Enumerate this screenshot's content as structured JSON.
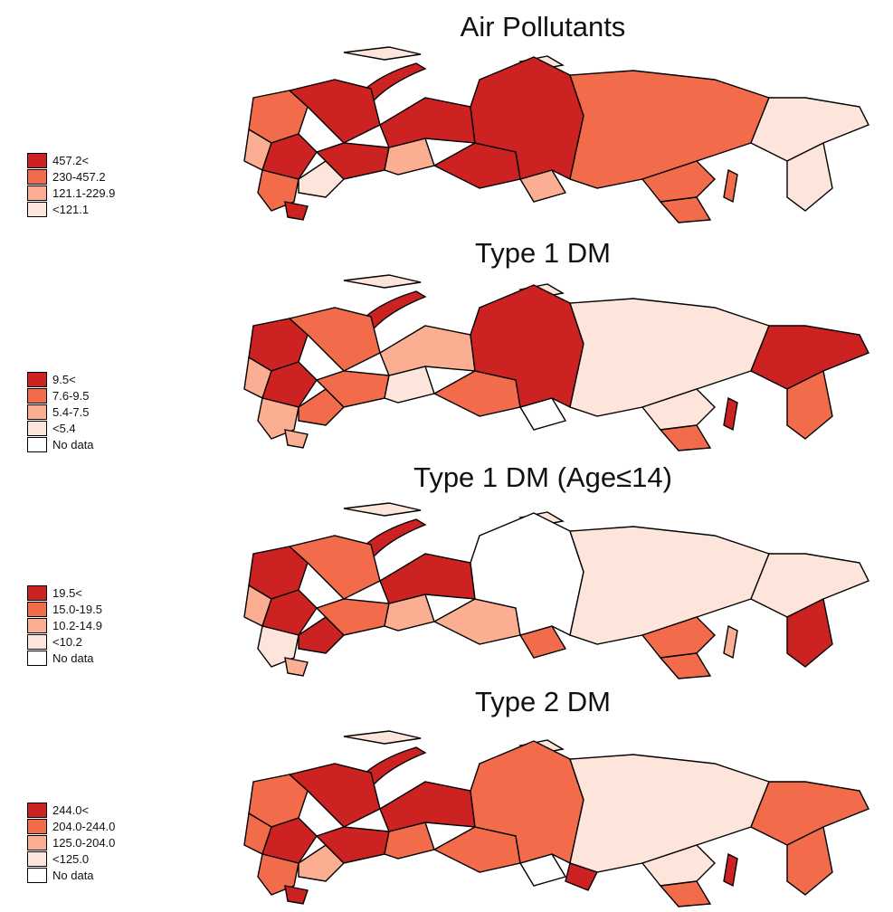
{
  "panels": [
    {
      "title": "Air Pollutants",
      "legend": [
        {
          "label": "457.2<",
          "color": "#cc2222"
        },
        {
          "label": "230-457.2",
          "color": "#f26b4a"
        },
        {
          "label": "121.1-229.9",
          "color": "#fbae91"
        },
        {
          "label": "<121.1",
          "color": "#fde5db"
        }
      ]
    },
    {
      "title": "Type 1 DM",
      "legend": [
        {
          "label": "9.5<",
          "color": "#cc2222"
        },
        {
          "label": "7.6-9.5",
          "color": "#f26b4a"
        },
        {
          "label": "5.4-7.5",
          "color": "#fbae91"
        },
        {
          "label": "<5.4",
          "color": "#fde5db"
        },
        {
          "label": "No data",
          "color": "#ffffff"
        }
      ]
    },
    {
      "title": "Type 1 DM (Age≤14)",
      "legend": [
        {
          "label": "19.5<",
          "color": "#cc2222"
        },
        {
          "label": "15.0-19.5",
          "color": "#f26b4a"
        },
        {
          "label": "10.2-14.9",
          "color": "#fbae91"
        },
        {
          "label": "<10.2",
          "color": "#fde5db"
        },
        {
          "label": "No data",
          "color": "#ffffff"
        }
      ]
    },
    {
      "title": "Type 2 DM",
      "legend": [
        {
          "label": "244.0<",
          "color": "#cc2222"
        },
        {
          "label": "204.0-244.0",
          "color": "#f26b4a"
        },
        {
          "label": "125.0-204.0",
          "color": "#fbae91"
        },
        {
          "label": "<125.0",
          "color": "#fde5db"
        },
        {
          "label": "No data",
          "color": "#ffffff"
        }
      ]
    }
  ]
}
